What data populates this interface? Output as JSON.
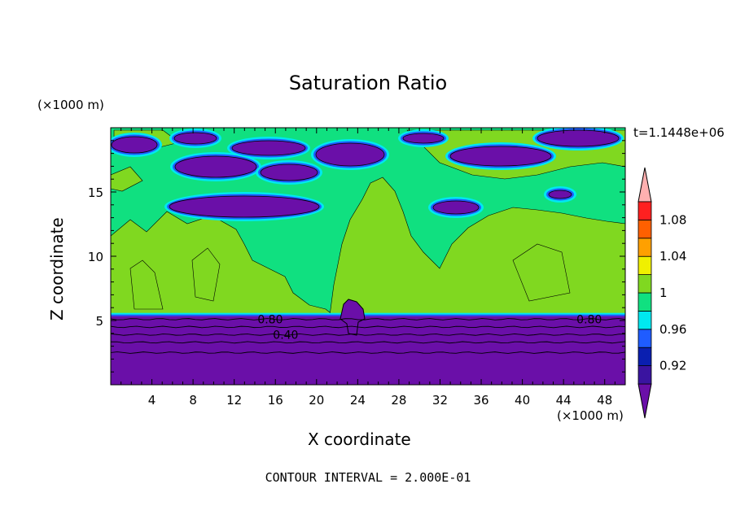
{
  "chart_data": {
    "type": "heatmap",
    "title": "Saturation Ratio",
    "xlabel": "X coordinate",
    "ylabel": "Z coordinate",
    "x_unit": "(×1000 m)",
    "z_unit": "(×1000 m)",
    "time_label": "t=1.1448e+06",
    "footer": "CONTOUR INTERVAL = 2.000E-01",
    "xlim": [
      0,
      50
    ],
    "ylim": [
      0,
      20
    ],
    "x_ticks": [
      "4",
      "8",
      "12",
      "16",
      "20",
      "24",
      "28",
      "32",
      "36",
      "40",
      "44",
      "48"
    ],
    "y_ticks": [
      "5",
      "10",
      "15"
    ],
    "colorbar": {
      "labels": [
        "0.92",
        "0.96",
        "1",
        "1.04",
        "1.08"
      ],
      "levels": [
        0.92,
        0.94,
        0.96,
        0.98,
        1.0,
        1.02,
        1.04,
        1.06,
        1.08,
        1.1
      ],
      "colors": [
        "#6a0fa8",
        "#3a14a0",
        "#0a1fb0",
        "#1f5cff",
        "#00e8f0",
        "#10e080",
        "#80d820",
        "#f0f000",
        "#ffa000",
        "#ff6000",
        "#ff2020",
        "#ffb0b0"
      ]
    },
    "contour_labels": [
      {
        "text": "0.80",
        "x": 15.5,
        "z": 5.1
      },
      {
        "text": "0.80",
        "x": 46.5,
        "z": 5.1
      },
      {
        "text": "0.40",
        "x": 17.0,
        "z": 3.9
      }
    ]
  },
  "colors": {
    "under": "#6a0fa8",
    "dark_purple": "#6a0fa8",
    "blue": "#1f5cff",
    "cyan": "#00e8f0",
    "green": "#10e080",
    "yellow_green": "#80d820"
  }
}
